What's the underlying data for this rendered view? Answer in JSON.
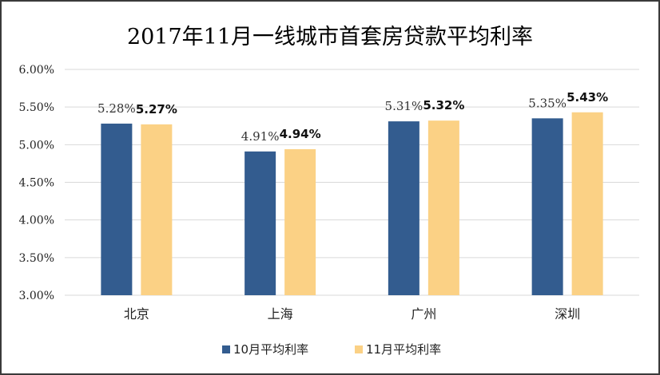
{
  "chart_data": {
    "type": "bar",
    "title": "2017年11月一线城市首套房贷款平均利率",
    "categories": [
      "北京",
      "上海",
      "广州",
      "深圳"
    ],
    "series": [
      {
        "name": "10月平均利率",
        "values": [
          5.28,
          4.91,
          5.31,
          5.35
        ],
        "labels": [
          "5.28%",
          "4.91%",
          "5.31%",
          "5.35%"
        ],
        "color": "#335c8f"
      },
      {
        "name": "11月平均利率",
        "values": [
          5.27,
          4.94,
          5.32,
          5.43
        ],
        "labels": [
          "5.27%",
          "4.94%",
          "5.32%",
          "5.43%"
        ],
        "color": "#fbd185"
      }
    ],
    "yticks": [
      "6.00%",
      "5.50%",
      "5.00%",
      "4.50%",
      "4.00%",
      "3.50%",
      "3.00%"
    ],
    "ylim": [
      3.0,
      6.0
    ],
    "grid": true,
    "gridColor": "#d9d9d9",
    "legend": "bottom"
  }
}
